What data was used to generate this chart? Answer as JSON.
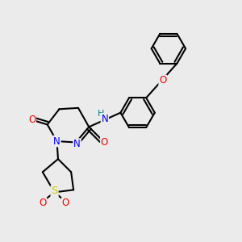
{
  "bg_color": "#ebebeb",
  "atom_colors": {
    "C": "#000000",
    "N": "#0000ff",
    "O": "#ff0000",
    "S": "#cccc00",
    "H": "#008080"
  },
  "bond_color": "#000000",
  "bond_width": 1.5,
  "label_fontsize": 8.5
}
